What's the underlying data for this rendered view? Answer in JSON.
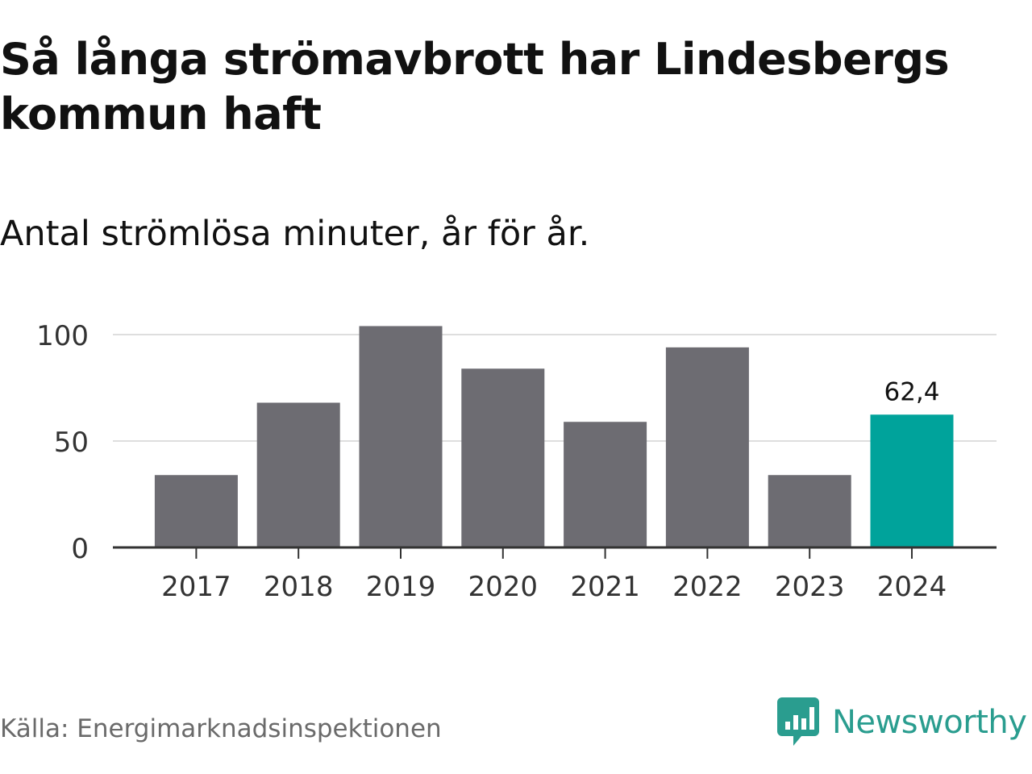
{
  "title": "Så långa strömavbrott har Lindesbergs kommun haft",
  "subtitle": "Antal strömlösa minuter, år för år.",
  "source": "Källa: Energimarknadsinspektionen",
  "brand": {
    "name": "Newsworthy",
    "color": "#2a9d8f",
    "icon": "newsworthy-logo-icon"
  },
  "colors": {
    "bar": "#6d6c72",
    "highlight": "#00a39b",
    "grid": "#dedede",
    "axis": "#333333",
    "text": "#333333"
  },
  "chart_data": {
    "type": "bar",
    "title": "Så långa strömavbrott har Lindesbergs kommun haft",
    "subtitle": "Antal strömlösa minuter, år för år.",
    "xlabel": "",
    "ylabel": "",
    "categories": [
      "2017",
      "2018",
      "2019",
      "2020",
      "2021",
      "2022",
      "2023",
      "2024"
    ],
    "values": [
      34,
      68,
      104,
      84,
      59,
      94,
      34,
      62.4
    ],
    "highlight_index": 7,
    "data_labels": [
      {
        "index": 7,
        "text": "62,4"
      }
    ],
    "yticks": [
      0,
      50,
      100
    ],
    "ytick_labels": [
      "0",
      "50",
      "100"
    ],
    "ylim": [
      0,
      110
    ],
    "grid": true,
    "legend": "none"
  }
}
